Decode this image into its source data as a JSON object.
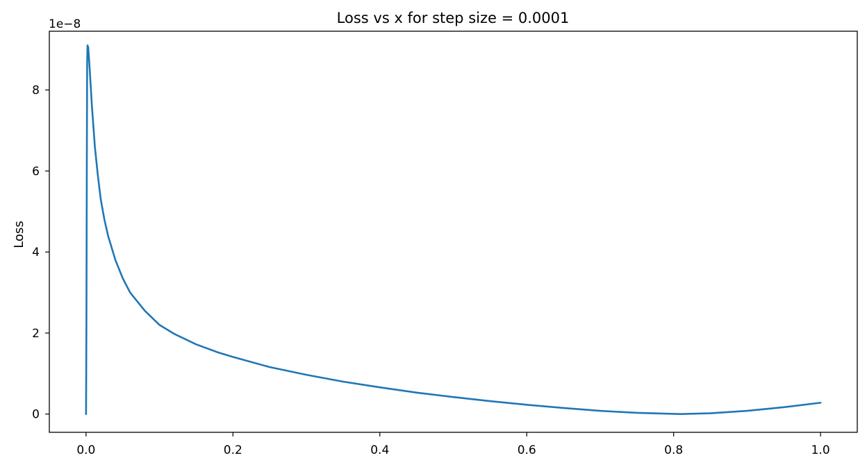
{
  "chart_data": {
    "type": "line",
    "title": "Loss vs x for step size = 0.0001",
    "xlabel": "",
    "ylabel": "Loss",
    "y_offset_label": "1e−8",
    "xlim": [
      -0.05,
      1.05
    ],
    "ylim": [
      -0.45,
      9.45
    ],
    "y_scale_factor": 1e-08,
    "grid": false,
    "legend": "none",
    "x_ticks": [
      {
        "value": 0.0,
        "label": "0.0"
      },
      {
        "value": 0.2,
        "label": "0.2"
      },
      {
        "value": 0.4,
        "label": "0.4"
      },
      {
        "value": 0.6,
        "label": "0.6"
      },
      {
        "value": 0.8,
        "label": "0.8"
      },
      {
        "value": 1.0,
        "label": "1.0"
      }
    ],
    "y_ticks": [
      {
        "value": 0,
        "label": "0"
      },
      {
        "value": 2,
        "label": "2"
      },
      {
        "value": 4,
        "label": "4"
      },
      {
        "value": 6,
        "label": "6"
      },
      {
        "value": 8,
        "label": "8"
      }
    ],
    "series": [
      {
        "color": "#1f77b4",
        "x": [
          0.0,
          0.0005,
          0.001,
          0.0015,
          0.002,
          0.003,
          0.005,
          0.008,
          0.012,
          0.016,
          0.02,
          0.025,
          0.03,
          0.04,
          0.05,
          0.06,
          0.08,
          0.1,
          0.12,
          0.15,
          0.18,
          0.2,
          0.25,
          0.3,
          0.35,
          0.4,
          0.45,
          0.5,
          0.55,
          0.6,
          0.65,
          0.7,
          0.75,
          0.8,
          0.81,
          0.85,
          0.9,
          0.95,
          1.0
        ],
        "y": [
          0.0,
          2.2,
          5.8,
          8.7,
          9.1,
          9.05,
          8.5,
          7.6,
          6.6,
          5.9,
          5.3,
          4.8,
          4.4,
          3.8,
          3.35,
          3.0,
          2.55,
          2.2,
          1.98,
          1.72,
          1.52,
          1.41,
          1.16,
          0.97,
          0.8,
          0.66,
          0.53,
          0.42,
          0.32,
          0.23,
          0.15,
          0.08,
          0.03,
          0.005,
          0.0,
          0.02,
          0.08,
          0.17,
          0.28
        ]
      }
    ]
  }
}
